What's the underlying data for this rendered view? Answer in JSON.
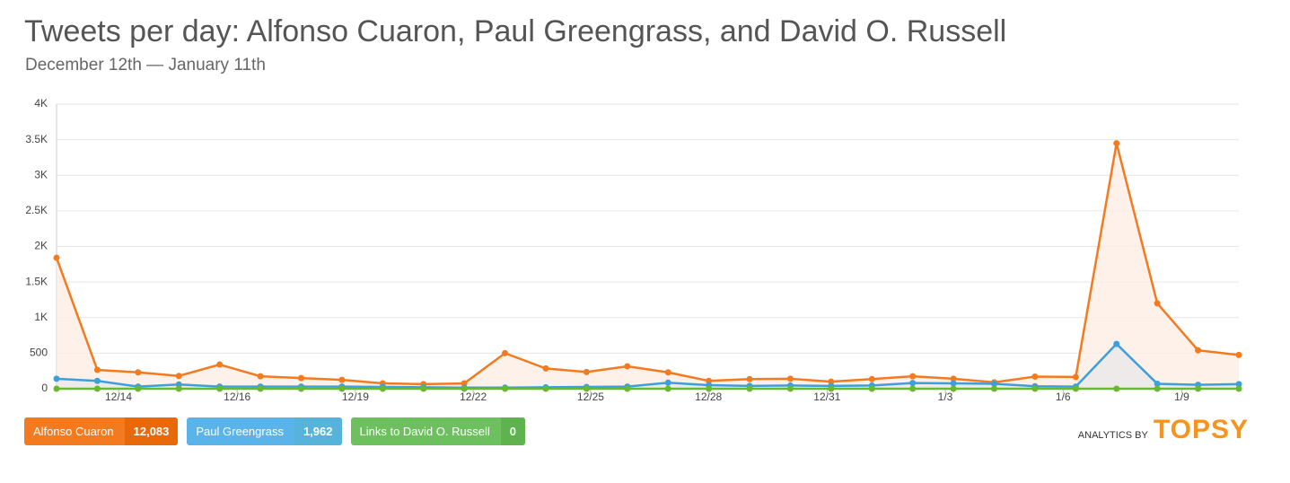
{
  "chart_data": {
    "type": "line",
    "title": "Tweets per day: Alfonso Cuaron, Paul Greengrass, and David O. Russell",
    "subtitle": "December 12th — January 11th",
    "x": [
      0,
      1,
      2,
      3,
      4,
      5,
      6,
      7,
      8,
      9,
      10,
      11,
      12,
      13,
      14,
      15,
      16,
      17,
      18,
      19,
      20,
      21,
      22,
      23,
      24,
      25,
      26,
      27,
      28,
      29
    ],
    "xlim": [
      0,
      29
    ],
    "xticks": [
      {
        "value": 1.52,
        "label": "12/14"
      },
      {
        "value": 4.43,
        "label": "12/16"
      },
      {
        "value": 7.33,
        "label": "12/19"
      },
      {
        "value": 10.22,
        "label": "12/22"
      },
      {
        "value": 13.1,
        "label": "12/25"
      },
      {
        "value": 15.99,
        "label": "12/28"
      },
      {
        "value": 18.9,
        "label": "12/31"
      },
      {
        "value": 21.8,
        "label": "1/3"
      },
      {
        "value": 24.69,
        "label": "1/6"
      },
      {
        "value": 27.6,
        "label": "1/9"
      }
    ],
    "ylim": [
      0,
      4000
    ],
    "yticks": [
      0,
      500,
      {
        "value": 1000,
        "label": "1K"
      },
      {
        "value": 1500,
        "label": "1.5K"
      },
      {
        "value": 2000,
        "label": "2K"
      },
      {
        "value": 2500,
        "label": "2.5K"
      },
      {
        "value": 3000,
        "label": "3K"
      },
      {
        "value": 3500,
        "label": "3.5K"
      },
      {
        "value": 4000,
        "label": "4K"
      }
    ],
    "grid": true,
    "series": [
      {
        "name": "Alfonso Cuaron",
        "color": "#f47a1f",
        "total": {
          "value": 12083,
          "label": "12,083"
        },
        "values": [
          1840,
          265,
          230,
          180,
          340,
          175,
          150,
          125,
          75,
          65,
          75,
          500,
          285,
          235,
          315,
          230,
          110,
          135,
          140,
          100,
          135,
          175,
          140,
          90,
          170,
          165,
          3450,
          1200,
          540,
          475
        ]
      },
      {
        "name": "Paul Greengrass",
        "color": "#3d9fdc",
        "total": {
          "value": 1962,
          "label": "1,962"
        },
        "values": [
          140,
          110,
          30,
          60,
          30,
          30,
          30,
          30,
          25,
          20,
          15,
          15,
          20,
          25,
          30,
          85,
          50,
          40,
          45,
          40,
          45,
          80,
          75,
          70,
          35,
          30,
          630,
          70,
          55,
          65
        ]
      },
      {
        "name": "Links to David O. Russell",
        "color": "#6ab82f",
        "total": {
          "value": 0,
          "label": "0"
        },
        "values": [
          0,
          0,
          0,
          0,
          0,
          0,
          0,
          0,
          0,
          0,
          0,
          0,
          0,
          0,
          0,
          0,
          0,
          0,
          0,
          0,
          0,
          0,
          0,
          0,
          0,
          0,
          0,
          0,
          0,
          0
        ]
      }
    ]
  },
  "brand": {
    "prefix": "ANALYTICS BY",
    "name": "TOPSY"
  }
}
